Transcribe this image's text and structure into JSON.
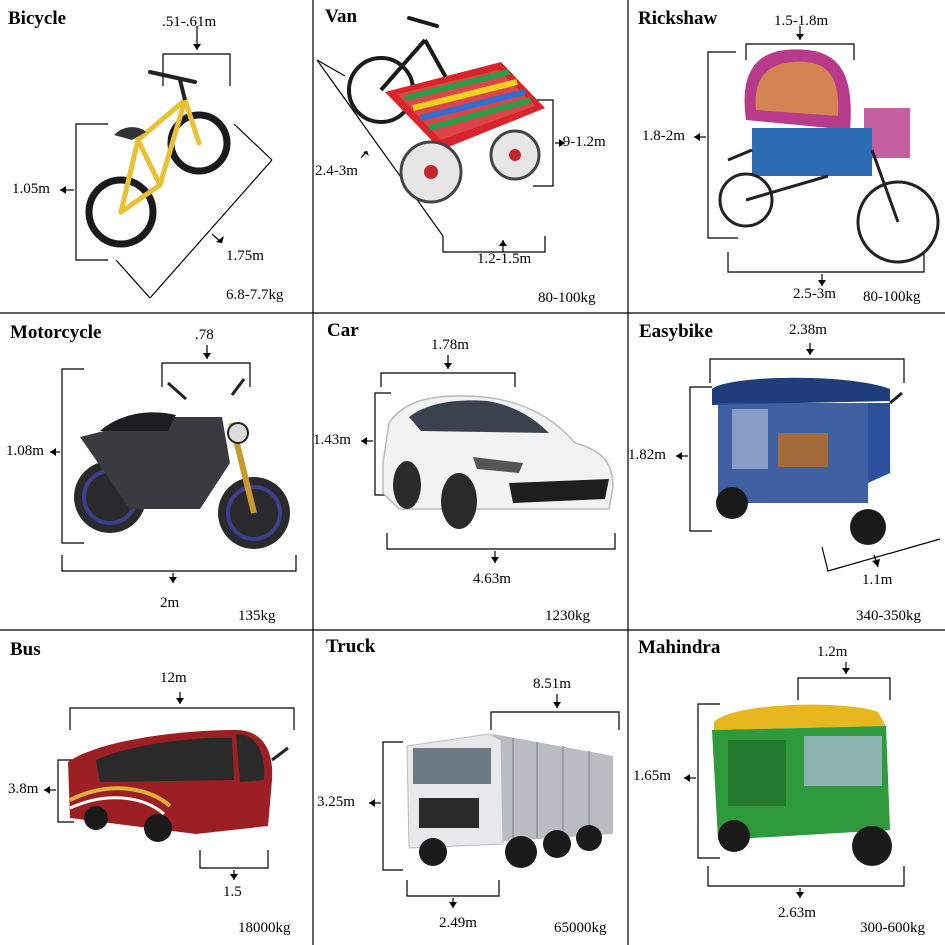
{
  "vehicles": [
    {
      "name": "Bicycle",
      "dims": [
        ".51-.61m",
        "1.05m",
        "1.75m"
      ],
      "weight": "6.8-7.7kg",
      "colors": {
        "frame": "#e8c234",
        "tire": "#1a1a1a",
        "seat": "#333333"
      }
    },
    {
      "name": "Van",
      "dims": [
        "2.4-3m",
        ".9-1.2m",
        "1.2-1.5m"
      ],
      "weight": "80-100kg",
      "colors": {
        "deck": "#d8242a",
        "slat1": "#2a9d4b",
        "slat2": "#f1d21c",
        "slat3": "#2f6fd1",
        "wheel": "#e6e6e6"
      }
    },
    {
      "name": "Rickshaw",
      "dims": [
        "1.5-1.8m",
        "1.8-2m",
        "2.5-3m"
      ],
      "weight": "80-100kg",
      "colors": {
        "hood": "#b83a8a",
        "hood2": "#e0a33a",
        "body": "#2d6cb5",
        "tire": "#222222"
      }
    },
    {
      "name": "Motorcycle",
      "dims": [
        ".78",
        "1.08m",
        "2m"
      ],
      "weight": "135kg",
      "colors": {
        "body": "#2a2a2e",
        "rim": "#3b3f8c",
        "fork": "#c99a2b",
        "tank": "#3a3a40"
      }
    },
    {
      "name": "Car",
      "dims": [
        "1.78m",
        "1.43m",
        "4.63m"
      ],
      "weight": "1230kg",
      "colors": {
        "body": "#f2f2f2",
        "glass": "#3a4250",
        "grille": "#1e1e1e",
        "tire": "#2a2a2a"
      }
    },
    {
      "name": "Easybike",
      "dims": [
        "2.38m",
        "1.82m",
        "1.1m"
      ],
      "weight": "340-350kg",
      "colors": {
        "body": "#2b4f9a",
        "roof": "#1f3d7a",
        "seat": "#a36a3c",
        "tire": "#1a1a1a"
      }
    },
    {
      "name": "Bus",
      "dims": [
        "12m",
        "3.8m",
        "1.5"
      ],
      "weight": "18000kg",
      "colors": {
        "body": "#9c1f24",
        "glass": "#2a2a2a",
        "stripe": "#e0b23a",
        "tire": "#1a1a1a"
      }
    },
    {
      "name": "Truck",
      "dims": [
        "8.51m",
        "3.25m",
        "2.49m"
      ],
      "weight": "65000kg",
      "colors": {
        "cab": "#e8e8ea",
        "bed": "#b9bcc2",
        "grille": "#2a2a2a",
        "tire": "#1a1a1a"
      }
    },
    {
      "name": "Mahindra",
      "dims": [
        "1.2m",
        "1.65m",
        "2.63m"
      ],
      "weight": "300-600kg",
      "colors": {
        "roof": "#e6b71f",
        "body": "#2e9a3c",
        "glass": "#9fb8c6",
        "tire": "#1a1a1a"
      }
    }
  ]
}
